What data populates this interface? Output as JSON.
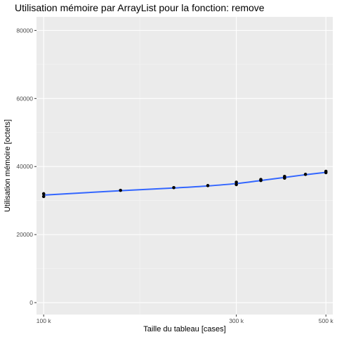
{
  "chart_data": {
    "type": "scatter",
    "title": "Utilisation mémoire par ArrayList pour la fonction: remove",
    "xlabel": "Taille du tableau [cases]",
    "ylabel": "Utilisation mémoire [octets]",
    "x_scale": "log10",
    "xlim": [
      96000,
      520000
    ],
    "ylim": [
      -3500,
      84000
    ],
    "x_ticks": [
      {
        "value": 100000,
        "label": "100 k"
      },
      {
        "value": 300000,
        "label": "300 k"
      },
      {
        "value": 500000,
        "label": "500 k"
      }
    ],
    "x_minor_ticks": [
      173000
    ],
    "y_ticks": [
      {
        "value": 0,
        "label": "0"
      },
      {
        "value": 20000,
        "label": "20000"
      },
      {
        "value": 40000,
        "label": "40000"
      },
      {
        "value": 60000,
        "label": "60000"
      },
      {
        "value": 80000,
        "label": "80000"
      }
    ],
    "points": [
      {
        "x": 100000,
        "y": 31200
      },
      {
        "x": 100000,
        "y": 32000
      },
      {
        "x": 155000,
        "y": 33000
      },
      {
        "x": 210000,
        "y": 33800
      },
      {
        "x": 255000,
        "y": 34400
      },
      {
        "x": 300000,
        "y": 34700
      },
      {
        "x": 300000,
        "y": 35400
      },
      {
        "x": 345000,
        "y": 35900
      },
      {
        "x": 345000,
        "y": 36200
      },
      {
        "x": 395000,
        "y": 36600
      },
      {
        "x": 395000,
        "y": 37100
      },
      {
        "x": 445000,
        "y": 37700
      },
      {
        "x": 500000,
        "y": 38200
      },
      {
        "x": 500000,
        "y": 38600
      }
    ],
    "smooth_line": [
      {
        "x": 100000,
        "y": 31600
      },
      {
        "x": 155000,
        "y": 32900
      },
      {
        "x": 210000,
        "y": 33700
      },
      {
        "x": 255000,
        "y": 34300
      },
      {
        "x": 300000,
        "y": 35000
      },
      {
        "x": 345000,
        "y": 35900
      },
      {
        "x": 395000,
        "y": 36800
      },
      {
        "x": 445000,
        "y": 37600
      },
      {
        "x": 500000,
        "y": 38300
      }
    ],
    "grid": true,
    "colors": {
      "panel": "#ebebeb",
      "grid_major": "#ffffff",
      "point": "#000000",
      "line": "#3366ff"
    }
  }
}
